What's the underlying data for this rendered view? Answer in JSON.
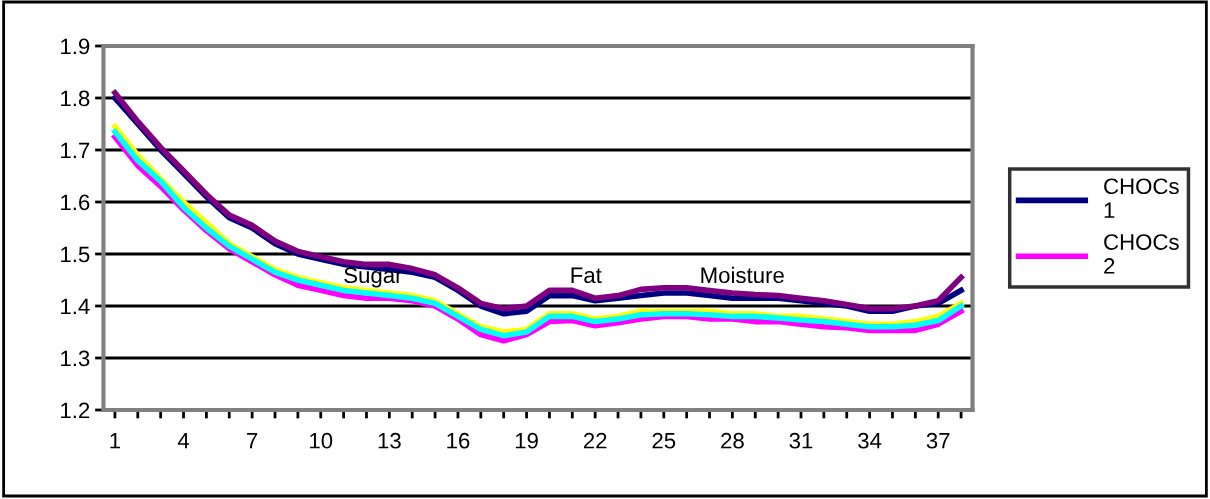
{
  "chart_data": {
    "type": "line",
    "categories": [
      "1",
      null,
      null,
      "4",
      null,
      null,
      "7",
      null,
      null,
      "10",
      null,
      null,
      "13",
      null,
      null,
      "16",
      null,
      null,
      "19",
      null,
      null,
      "22",
      null,
      null,
      "25",
      null,
      null,
      "28",
      null,
      null,
      "31",
      null,
      null,
      "34",
      null,
      null,
      "37",
      null
    ],
    "series": [
      {
        "name": "CHOCs 1",
        "color": "#000080",
        "values": [
          1.8,
          1.75,
          1.7,
          1.655,
          1.61,
          1.57,
          1.55,
          1.52,
          1.5,
          1.49,
          1.48,
          1.475,
          1.47,
          1.465,
          1.455,
          1.43,
          1.4,
          1.385,
          1.39,
          1.42,
          1.42,
          1.41,
          1.415,
          1.42,
          1.425,
          1.425,
          1.42,
          1.415,
          1.415,
          1.415,
          1.41,
          1.405,
          1.4,
          1.39,
          1.39,
          1.4,
          1.405,
          1.43
        ]
      },
      {
        "name": "CHOCs 2",
        "color": "#ff00ff",
        "values": [
          1.725,
          1.67,
          1.63,
          1.585,
          1.545,
          1.51,
          1.485,
          1.46,
          1.44,
          1.43,
          1.42,
          1.415,
          1.415,
          1.41,
          1.4,
          1.375,
          1.345,
          1.333,
          1.345,
          1.37,
          1.372,
          1.362,
          1.368,
          1.375,
          1.38,
          1.38,
          1.375,
          1.375,
          1.37,
          1.37,
          1.365,
          1.36,
          1.358,
          1.353,
          1.353,
          1.353,
          1.365,
          1.39
        ]
      },
      {
        "color": "#ffff00",
        "values": [
          1.745,
          1.69,
          1.645,
          1.6,
          1.56,
          1.52,
          1.495,
          1.47,
          1.455,
          1.445,
          1.435,
          1.43,
          1.425,
          1.42,
          1.41,
          1.385,
          1.36,
          1.35,
          1.355,
          1.385,
          1.385,
          1.375,
          1.38,
          1.39,
          1.39,
          1.39,
          1.39,
          1.385,
          1.385,
          1.38,
          1.38,
          1.375,
          1.37,
          1.365,
          1.365,
          1.37,
          1.38,
          1.405
        ]
      },
      {
        "color": "#00ffff",
        "values": [
          1.735,
          1.68,
          1.64,
          1.59,
          1.55,
          1.515,
          1.49,
          1.465,
          1.45,
          1.44,
          1.43,
          1.425,
          1.42,
          1.415,
          1.405,
          1.38,
          1.355,
          1.343,
          1.35,
          1.38,
          1.38,
          1.37,
          1.375,
          1.383,
          1.385,
          1.385,
          1.383,
          1.38,
          1.38,
          1.377,
          1.373,
          1.37,
          1.365,
          1.36,
          1.36,
          1.363,
          1.372,
          1.4
        ]
      },
      {
        "color": "#800080",
        "values": [
          1.81,
          1.755,
          1.705,
          1.66,
          1.615,
          1.575,
          1.555,
          1.525,
          1.505,
          1.495,
          1.485,
          1.48,
          1.48,
          1.472,
          1.46,
          1.435,
          1.405,
          1.395,
          1.4,
          1.43,
          1.43,
          1.415,
          1.42,
          1.432,
          1.435,
          1.435,
          1.43,
          1.425,
          1.422,
          1.42,
          1.415,
          1.41,
          1.403,
          1.395,
          1.395,
          1.4,
          1.41,
          1.455
        ]
      }
    ],
    "ylim": [
      1.2,
      1.9
    ],
    "yticks": [
      1.2,
      1.3,
      1.4,
      1.5,
      1.6,
      1.7,
      1.8,
      1.9
    ],
    "grid": "y",
    "legend": "right",
    "marker": "none",
    "line_style": "solid",
    "annotations": [
      "Sugar",
      "Fat",
      "Moisture"
    ]
  }
}
